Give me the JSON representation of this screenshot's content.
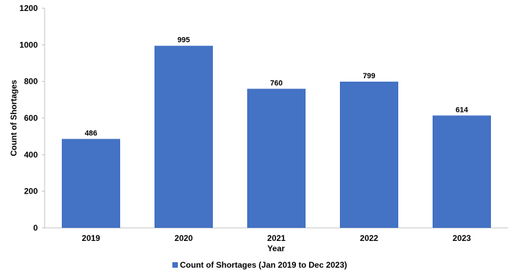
{
  "chart_data": {
    "type": "bar",
    "categories": [
      "2019",
      "2020",
      "2021",
      "2022",
      "2023"
    ],
    "series": [
      {
        "name": "Count of Shortages (Jan 2019 to Dec 2023)",
        "values": [
          486,
          995,
          760,
          799,
          614
        ],
        "color": "#4472C4"
      }
    ],
    "data_labels": [
      "486",
      "995",
      "760",
      "799",
      "614"
    ],
    "title": "",
    "xlabel": "Year",
    "ylabel": "Count of Shortages",
    "ylim": [
      0,
      1200
    ],
    "yticks": [
      0,
      200,
      400,
      600,
      800,
      1000,
      1200
    ],
    "ytick_labels": [
      "0",
      "200",
      "400",
      "600",
      "800",
      "1000",
      "1200"
    ],
    "grid": false,
    "legend": "bottom"
  }
}
